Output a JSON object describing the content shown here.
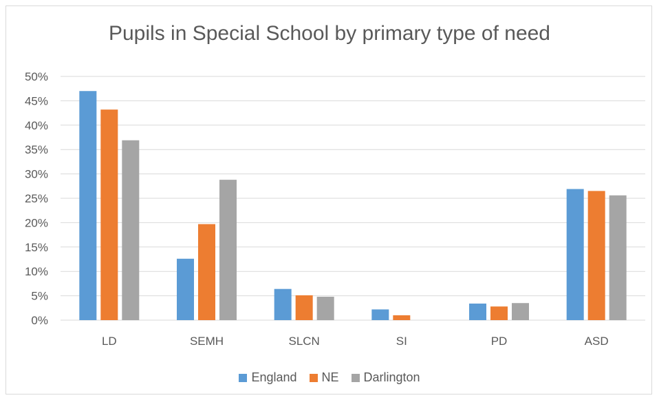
{
  "chart_data": {
    "type": "bar",
    "title": "Pupils in Special School by primary type of need",
    "categories": [
      "LD",
      "SEMH",
      "SLCN",
      "SI",
      "PD",
      "ASD"
    ],
    "series": [
      {
        "name": "England",
        "color": "#5b9bd5",
        "values": [
          47.0,
          12.6,
          6.4,
          2.2,
          3.4,
          26.9
        ]
      },
      {
        "name": "NE",
        "color": "#ed7d31",
        "values": [
          43.2,
          19.7,
          5.1,
          1.0,
          2.8,
          26.5
        ]
      },
      {
        "name": "Darlington",
        "color": "#a5a5a5",
        "values": [
          36.9,
          28.8,
          4.8,
          0.0,
          3.5,
          25.6
        ]
      }
    ],
    "ylim": [
      0,
      50
    ],
    "yticks": [
      "0%",
      "5%",
      "10%",
      "15%",
      "20%",
      "25%",
      "30%",
      "35%",
      "40%",
      "45%",
      "50%"
    ],
    "grid": true,
    "legend_position": "bottom"
  }
}
